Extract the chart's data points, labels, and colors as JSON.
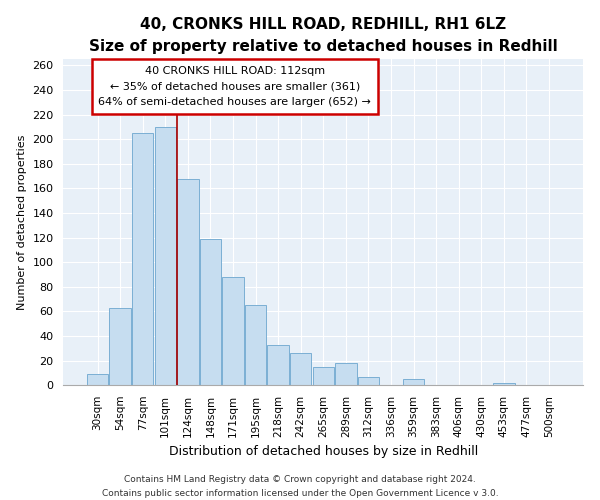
{
  "title1": "40, CRONKS HILL ROAD, REDHILL, RH1 6LZ",
  "title2": "Size of property relative to detached houses in Redhill",
  "xlabel": "Distribution of detached houses by size in Redhill",
  "ylabel": "Number of detached properties",
  "bar_labels": [
    "30sqm",
    "54sqm",
    "77sqm",
    "101sqm",
    "124sqm",
    "148sqm",
    "171sqm",
    "195sqm",
    "218sqm",
    "242sqm",
    "265sqm",
    "289sqm",
    "312sqm",
    "336sqm",
    "359sqm",
    "383sqm",
    "406sqm",
    "430sqm",
    "453sqm",
    "477sqm",
    "500sqm"
  ],
  "bar_values": [
    9,
    63,
    205,
    210,
    168,
    119,
    88,
    65,
    33,
    26,
    15,
    18,
    7,
    0,
    5,
    0,
    0,
    0,
    2,
    0,
    0
  ],
  "bar_color": "#c6ddf0",
  "bar_edge_color": "#7bafd4",
  "vline_color": "#aa0000",
  "vline_pos": 3.5,
  "ylim_max": 265,
  "yticks": [
    0,
    20,
    40,
    60,
    80,
    100,
    120,
    140,
    160,
    180,
    200,
    220,
    240,
    260
  ],
  "annotation_title": "40 CRONKS HILL ROAD: 112sqm",
  "annotation_line1": "← 35% of detached houses are smaller (361)",
  "annotation_line2": "64% of semi-detached houses are larger (652) →",
  "annotation_box_facecolor": "#ffffff",
  "annotation_box_edgecolor": "#cc0000",
  "footer1": "Contains HM Land Registry data © Crown copyright and database right 2024.",
  "footer2": "Contains public sector information licensed under the Open Government Licence v 3.0.",
  "bg_color": "#ffffff",
  "plot_bg_color": "#e8f0f8",
  "grid_color": "#ffffff",
  "title1_fontsize": 11,
  "title2_fontsize": 9.5,
  "ylabel_fontsize": 8,
  "xlabel_fontsize": 9,
  "ytick_fontsize": 8,
  "xtick_fontsize": 7.5,
  "annot_fontsize": 8,
  "footer_fontsize": 6.5
}
